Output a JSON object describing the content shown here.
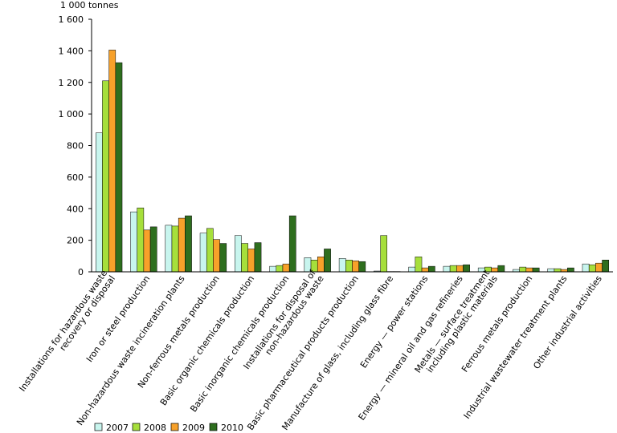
{
  "chart_data": {
    "type": "bar",
    "unit_label": "1 000 tonnes",
    "ylim": [
      0,
      1600
    ],
    "yticks": [
      "0",
      "200",
      "400",
      "600",
      "800",
      "1 000",
      "1 200",
      "1 400",
      "1 600"
    ],
    "grid": false,
    "legend_position": "bottom",
    "categories": [
      [
        "Installations for hazardous waste",
        "recovery or disposal"
      ],
      [
        "Iron or steel production"
      ],
      [
        "Non-hazardous waste incineration plants"
      ],
      [
        "Non-ferrous metals production"
      ],
      [
        "Basic organic chemicals production"
      ],
      [
        "Basic inorganic chemicals production"
      ],
      [
        "Installations for disposal of",
        "non-hazardous waste"
      ],
      [
        "Basic pharmaceutical products production"
      ],
      [
        "Manufacture of glass, including glass fibre"
      ],
      [
        "Energy — power stations"
      ],
      [
        "Energy — mineral oil and gas refineries"
      ],
      [
        "Metals — surface treatment",
        "including plastic materials"
      ],
      [
        "Ferrous metals production"
      ],
      [
        "Industrial wastewater treatment plants"
      ],
      [
        "Other industrial activities"
      ]
    ],
    "series": [
      {
        "name": "2007",
        "color": "#c8f5ee",
        "values": [
          880,
          380,
          295,
          245,
          230,
          35,
          90,
          85,
          5,
          30,
          35,
          25,
          15,
          20,
          50
        ]
      },
      {
        "name": "2008",
        "color": "#a6df3b",
        "values": [
          1210,
          405,
          290,
          275,
          180,
          40,
          75,
          75,
          230,
          95,
          40,
          30,
          30,
          20,
          45
        ]
      },
      {
        "name": "2009",
        "color": "#f7a12a",
        "values": [
          1405,
          265,
          340,
          205,
          145,
          50,
          95,
          70,
          2,
          25,
          40,
          25,
          25,
          15,
          55
        ]
      },
      {
        "name": "2010",
        "color": "#2e6e1e",
        "values": [
          1325,
          285,
          355,
          180,
          185,
          355,
          145,
          65,
          2,
          35,
          45,
          40,
          25,
          25,
          75
        ]
      }
    ]
  }
}
